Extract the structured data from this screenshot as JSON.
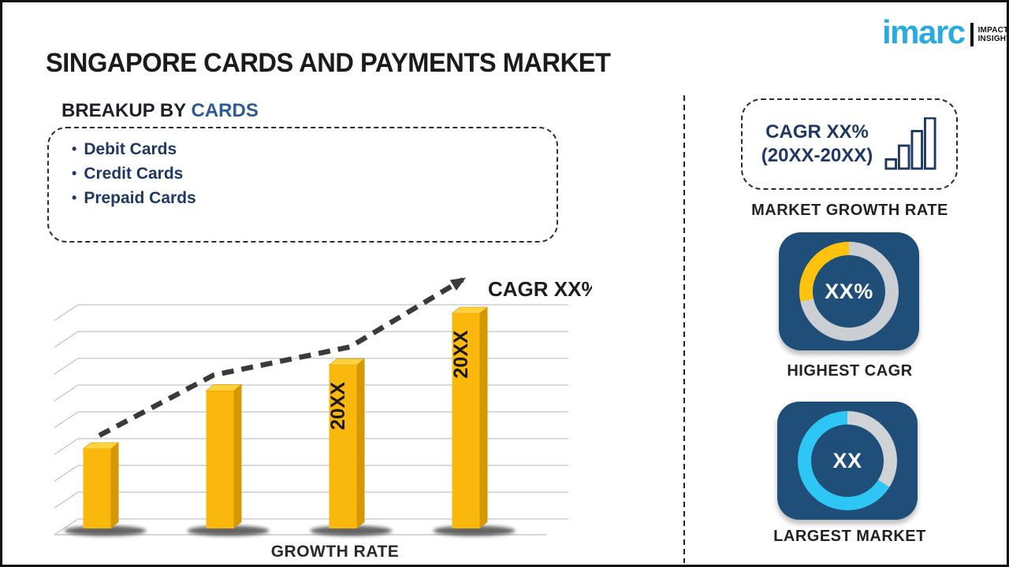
{
  "page": {
    "title": "SINGAPORE CARDS AND PAYMENTS MARKET"
  },
  "logo": {
    "brand": "imarc",
    "tagline1": "IMPACTFUL",
    "tagline2": "INSIGHTS"
  },
  "theme": {
    "ink": "#1c1c1c",
    "navy": "#1F3864",
    "steelblue": "#2E5B94",
    "tile": "#1F4E79",
    "yellow": "#FFC20E",
    "cyan": "#2EC6F5",
    "track": "#CBCFD3",
    "brand": "#29ABE2",
    "barfront": "#FBB80C",
    "bartop": "#FFD23E",
    "barside": "#D69800"
  },
  "breakup": {
    "heading_prefix": "BREAKUP BY",
    "heading_highlight": "CARDS",
    "items": [
      "Debit Cards",
      "Credit Cards",
      "Prepaid Cards"
    ]
  },
  "chart_data": {
    "type": "bar",
    "categories": [
      "",
      "",
      "20XX",
      "20XX"
    ],
    "values": [
      37,
      64,
      76,
      100
    ],
    "ylim": [
      0,
      100
    ],
    "title": "",
    "xlabel": "GROWTH RATE",
    "ylabel": "",
    "grid": true,
    "effect_3d": true,
    "bar_color": "#FBB80C",
    "trendline": {
      "label": "CAGR XX%",
      "style": "dashed-arrow",
      "color": "#3a3a3a"
    },
    "legend": "none"
  },
  "growth_box": {
    "line1": "CAGR XX%",
    "line2": "(20XX-20XX)",
    "caption": "MARKET GROWTH RATE",
    "icon_bars": [
      12,
      30,
      49,
      66
    ]
  },
  "tiles": {
    "highest": {
      "value": "XX%",
      "caption": "HIGHEST CAGR",
      "segments": [
        {
          "color": "#CBCFD3",
          "from": 0,
          "to": 258
        },
        {
          "color": "#FFC20E",
          "from": 258,
          "to": 360
        }
      ]
    },
    "largest": {
      "value": "XX",
      "caption": "LARGEST MARKET",
      "segments": [
        {
          "color": "#CFD3D6",
          "from": 0,
          "to": 122
        },
        {
          "color": "#2EC6F5",
          "from": 122,
          "to": 360
        }
      ]
    }
  }
}
